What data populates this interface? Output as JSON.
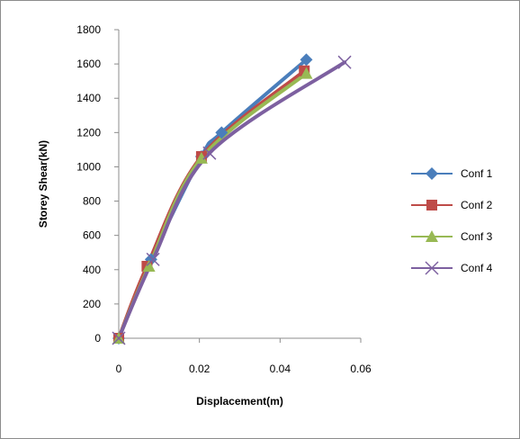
{
  "chart_data": {
    "type": "line",
    "title": "",
    "xlabel": "Displacement(m)",
    "ylabel": "Storey Shear(kN)",
    "xlim": [
      0,
      0.06
    ],
    "ylim": [
      0,
      1800
    ],
    "xticks": [
      0,
      0.02,
      0.04,
      0.06
    ],
    "xtick_labels": [
      "0",
      "0.02",
      "0.04",
      "0.06"
    ],
    "yticks": [
      0,
      200,
      400,
      600,
      800,
      1000,
      1200,
      1400,
      1600,
      1800
    ],
    "ytick_labels": [
      "0",
      "200",
      "400",
      "600",
      "800",
      "1000",
      "1200",
      "1400",
      "1600",
      "1800"
    ],
    "grid": false,
    "legend_position": "right",
    "smooth": true,
    "series": [
      {
        "name": "Conf 1",
        "color": "#4a7ebb",
        "marker": "diamond",
        "x": [
          0,
          0.008,
          0.0205,
          0.0255,
          0.0465
        ],
        "y": [
          0,
          460,
          1060,
          1200,
          1625
        ]
      },
      {
        "name": "Conf 2",
        "color": "#be4b48",
        "marker": "square",
        "x": [
          0,
          0.007,
          0.0205,
          0.046
        ],
        "y": [
          0,
          420,
          1060,
          1560
        ]
      },
      {
        "name": "Conf 3",
        "color": "#98b954",
        "marker": "triangle",
        "x": [
          0,
          0.0075,
          0.0205,
          0.0465
        ],
        "y": [
          0,
          420,
          1050,
          1545
        ]
      },
      {
        "name": "Conf 4",
        "color": "#7d60a0",
        "marker": "cross",
        "x": [
          0,
          0.0085,
          0.0225,
          0.056
        ],
        "y": [
          0,
          460,
          1080,
          1610
        ]
      }
    ]
  }
}
